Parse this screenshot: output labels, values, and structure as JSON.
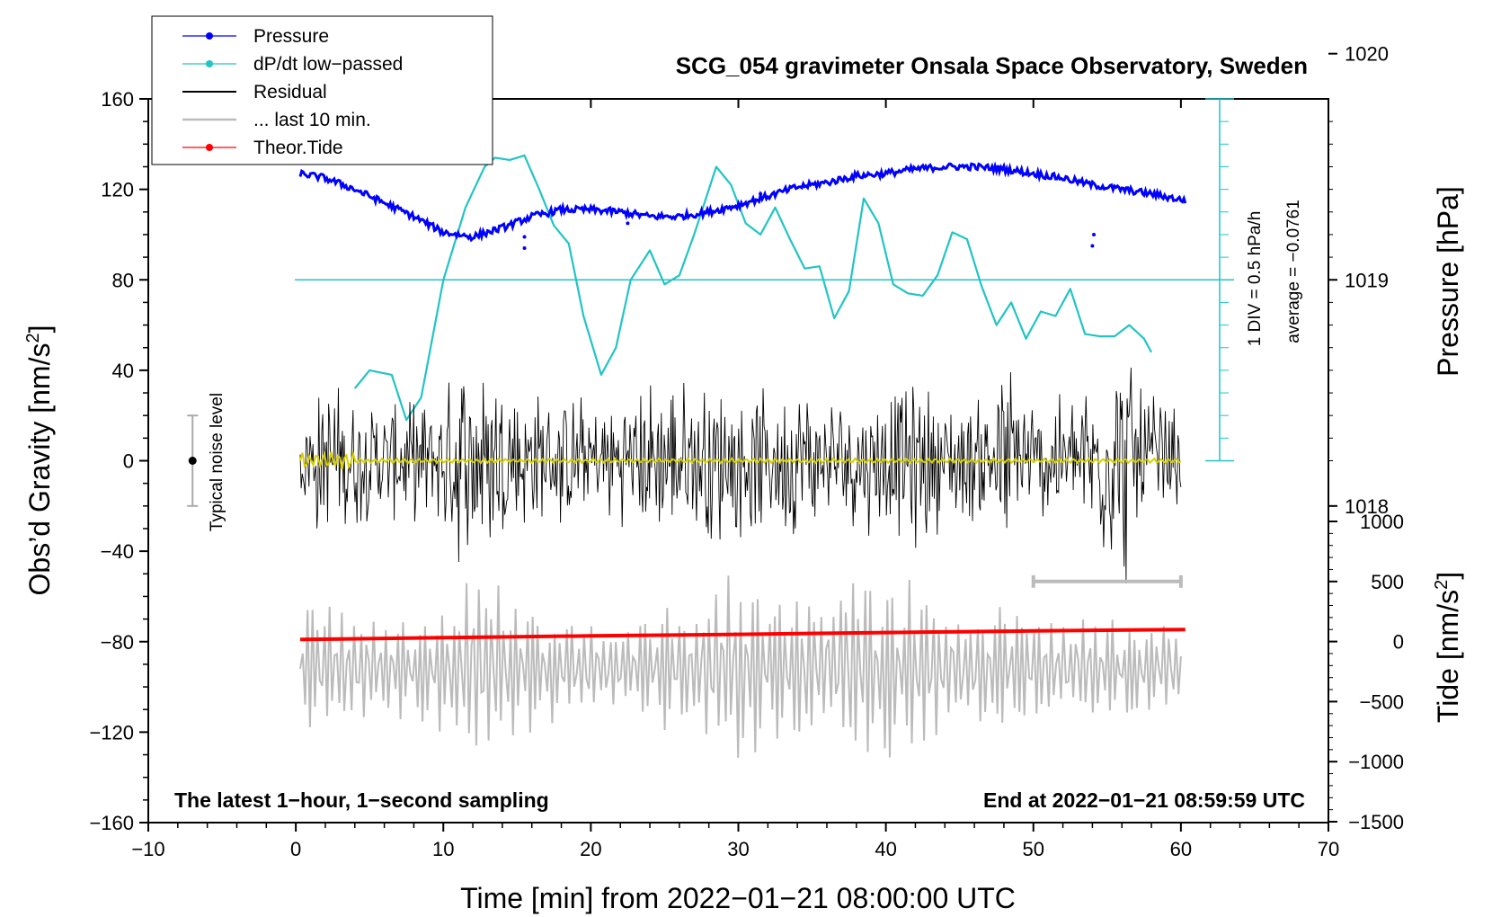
{
  "chart_data": {
    "type": "line",
    "title": "SCG_054 gravimeter Onsala Space Observatory, Sweden",
    "xlabel": "Time [min] from 2022−01−21 08:00:00 UTC",
    "ylabel_left": "Obs’d Gravity [nm/s²]",
    "ylabel_left_base": "Obs’d Gravity [nm/s",
    "ylabel_right_pressure": "Pressure [hPa]",
    "ylabel_right_tide_base": "Tide [nm/s",
    "ylabel_unit_close": "]",
    "superscript_two": "2",
    "xlim": [
      -10,
      70
    ],
    "ylim": [
      -160,
      160
    ],
    "x_ticks": [
      "−10",
      "0",
      "10",
      "20",
      "30",
      "40",
      "50",
      "60",
      "70"
    ],
    "y_ticks": [
      "−160",
      "−120",
      "−80",
      "−40",
      "0",
      "40",
      "80",
      "120",
      "160"
    ],
    "pressure_ticks": [
      "1018",
      "1019",
      "1020"
    ],
    "pressure_tick_values": [
      1018,
      1019,
      1020
    ],
    "tide_ticks": [
      "−1500",
      "−1000",
      "−500",
      "0",
      "500",
      "1000"
    ],
    "tide_tick_values": [
      -1500,
      -1000,
      -500,
      0,
      500,
      1000
    ],
    "note_left": "The latest 1−hour, 1−second sampling",
    "note_right": "End at 2022−01−21 08:59:59 UTC",
    "noise_label": "Typical noise level",
    "noise_bar": {
      "x": -7,
      "y_low": -20,
      "y_high": 20
    },
    "dpdt_scale_label": "1 DIV = 0.5 hPa/h",
    "dpdt_average_label": "average = −0.0761",
    "last10_bar": {
      "x_start": 50,
      "x_end": 60
    },
    "legend": [
      {
        "label": "Pressure",
        "color": "#0000ff",
        "marker": true
      },
      {
        "label": "dP/dt low−passed",
        "color": "#22c4c4",
        "marker": true
      },
      {
        "label": "Residual",
        "color": "#000000",
        "marker": false
      },
      {
        "label": "... last 10 min.",
        "color": "#bbbbbb",
        "marker": false
      },
      {
        "label": "Theor.Tide",
        "color": "#ff0000",
        "marker": true
      }
    ],
    "series": [
      {
        "name": "Pressure",
        "units": "hPa",
        "color": "#0000ff",
        "x": [
          0.3,
          2,
          4,
          6,
          8,
          10,
          12,
          14,
          16,
          18,
          20,
          22,
          24,
          26,
          28,
          30,
          32,
          34,
          36,
          38,
          40,
          42,
          44,
          46,
          48,
          50,
          52,
          54,
          56,
          58,
          60.3
        ],
        "values": [
          1019.47,
          1019.45,
          1019.4,
          1019.34,
          1019.28,
          1019.21,
          1019.19,
          1019.23,
          1019.28,
          1019.31,
          1019.31,
          1019.3,
          1019.28,
          1019.28,
          1019.3,
          1019.33,
          1019.37,
          1019.41,
          1019.43,
          1019.46,
          1019.47,
          1019.49,
          1019.5,
          1019.5,
          1019.49,
          1019.47,
          1019.45,
          1019.42,
          1019.4,
          1019.38,
          1019.35
        ]
      },
      {
        "name": "dP/dt low-passed",
        "units": "nm/s² plot scale",
        "color": "#22c4c4",
        "x": [
          4,
          5,
          6.5,
          7.5,
          8.5,
          10,
          11.5,
          12.8,
          13.5,
          14.5,
          15.5,
          16.5,
          17.5,
          18.5,
          19.5,
          20.7,
          21.7,
          22.7,
          24,
          25,
          26,
          27,
          28.5,
          29.5,
          30.5,
          31.5,
          32.5,
          33.5,
          34.5,
          35.5,
          36.5,
          37.5,
          38.5,
          39.5,
          40.5,
          41.5,
          42.5,
          43.5,
          44.5,
          45.5,
          46.5,
          47.5,
          48.5,
          49.5,
          50.5,
          51.5,
          52.5,
          53.5,
          54.5,
          55.5,
          56.5,
          57.5,
          58
        ],
        "values": [
          32,
          40,
          38,
          18,
          28,
          80,
          112,
          130,
          134,
          133,
          135,
          120,
          104,
          96,
          64,
          38,
          50,
          80,
          93,
          78,
          82,
          100,
          130,
          122,
          105,
          100,
          112,
          98,
          85,
          86,
          63,
          75,
          116,
          105,
          78,
          74,
          73,
          82,
          101,
          98,
          77,
          60,
          70,
          54,
          66,
          64,
          76,
          56,
          55,
          55,
          60,
          54,
          48
        ]
      },
      {
        "name": "Residual",
        "units": "nm/s²",
        "color": "#000000",
        "x": [
          0.3,
          2,
          4,
          6,
          8,
          10,
          12,
          14,
          16,
          18,
          20,
          22,
          24,
          26,
          28,
          30,
          32,
          34,
          36,
          38,
          40,
          42,
          44,
          46,
          48,
          50,
          52,
          54,
          56,
          58,
          60
        ],
        "amplitude": [
          25,
          40,
          30,
          30,
          28,
          35,
          60,
          45,
          35,
          32,
          30,
          30,
          40,
          38,
          42,
          38,
          32,
          40,
          28,
          35,
          35,
          42,
          32,
          30,
          52,
          30,
          32,
          42,
          62,
          35,
          25
        ]
      },
      {
        "name": "... last 10 min.",
        "units": "nm/s²",
        "color": "#bbbbbb",
        "x": [
          0.3,
          2,
          4,
          6,
          8,
          10,
          12,
          14,
          16,
          18,
          20,
          22,
          24,
          26,
          28,
          30,
          32,
          34,
          36,
          38,
          40,
          42,
          44,
          46,
          48,
          50,
          52,
          54,
          56,
          58,
          60
        ],
        "amplitude": [
          30,
          32,
          24,
          22,
          25,
          32,
          45,
          38,
          30,
          25,
          20,
          18,
          30,
          30,
          35,
          45,
          40,
          40,
          30,
          45,
          45,
          40,
          30,
          28,
          35,
          25,
          22,
          22,
          25,
          22,
          22
        ]
      },
      {
        "name": "Theor.Tide",
        "units": "nm/s²",
        "color": "#ff0000",
        "x": [
          0.3,
          10,
          20,
          30,
          40,
          50,
          60.3
        ],
        "values": [
          17,
          32,
          47,
          60,
          75,
          88,
          100
        ]
      }
    ]
  }
}
